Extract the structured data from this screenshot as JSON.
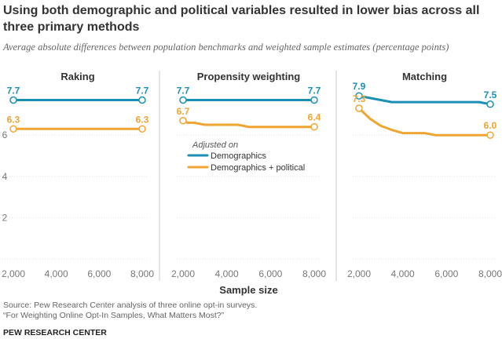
{
  "title": "Using both demographic  and political variables resulted in lower bias across all three primary methods",
  "subtitle": "Average absolute differences between population benchmarks and weighted sample estimates (percentage points)",
  "source_line1": "Source: Pew Research Center analysis of three online opt-in surveys.",
  "source_line2": "“For Weighting Online Opt-In Samples, What Matters Most?”",
  "brand": "PEW RESEARCH CENTER",
  "colors": {
    "demographics": "#1c8fb5",
    "political": "#f0a431",
    "grid": "#e2e2e2",
    "divider": "#cccccc",
    "text": "#333333",
    "tick": "#777777"
  },
  "chart_data": {
    "type": "line",
    "xlabel": "Sample size",
    "ylabel": "",
    "xlim": [
      2000,
      8000
    ],
    "ylim": [
      0,
      8
    ],
    "x_ticks": [
      2000,
      4000,
      6000,
      8000
    ],
    "x_tick_labels": [
      "2,000",
      "4,000",
      "6,000",
      "8,000"
    ],
    "y_ticks": [
      2,
      4,
      6
    ],
    "y_tick_labels": [
      "2",
      "4",
      "6"
    ],
    "grid": true,
    "legend": {
      "title": "Adjusted on",
      "placement": "center (inside middle panel)",
      "entries": [
        "Demographics",
        "Demographics + political"
      ]
    },
    "panels": [
      {
        "title": "Raking",
        "series": [
          {
            "name": "Demographics",
            "x": [
              2000,
              3000,
              4000,
              5000,
              6000,
              7000,
              8000
            ],
            "y": [
              7.7,
              7.7,
              7.7,
              7.7,
              7.7,
              7.7,
              7.7
            ],
            "start_label": "7.7",
            "end_label": "7.7"
          },
          {
            "name": "Demographics + political",
            "x": [
              2000,
              3000,
              4000,
              5000,
              6000,
              7000,
              8000
            ],
            "y": [
              6.3,
              6.3,
              6.3,
              6.3,
              6.3,
              6.3,
              6.3
            ],
            "start_label": "6.3",
            "end_label": "6.3"
          }
        ]
      },
      {
        "title": "Propensity weighting",
        "series": [
          {
            "name": "Demographics",
            "x": [
              2000,
              3000,
              4000,
              5000,
              6000,
              7000,
              8000
            ],
            "y": [
              7.7,
              7.7,
              7.7,
              7.7,
              7.7,
              7.7,
              7.7
            ],
            "start_label": "7.7",
            "end_label": "7.7"
          },
          {
            "name": "Demographics + political",
            "x": [
              2000,
              2200,
              2500,
              3000,
              3500,
              4000,
              4500,
              5000,
              5500,
              6000,
              7000,
              8000
            ],
            "y": [
              6.7,
              6.6,
              6.6,
              6.5,
              6.5,
              6.5,
              6.5,
              6.4,
              6.4,
              6.4,
              6.4,
              6.4
            ],
            "start_label": "6.7",
            "end_label": "6.4"
          }
        ]
      },
      {
        "title": "Matching",
        "series": [
          {
            "name": "Demographics",
            "x": [
              2000,
              2500,
              3000,
              3500,
              4000,
              5000,
              6000,
              7000,
              7500,
              8000
            ],
            "y": [
              7.9,
              7.8,
              7.7,
              7.6,
              7.6,
              7.6,
              7.6,
              7.6,
              7.6,
              7.5
            ],
            "start_label": "7.9",
            "end_label": "7.5"
          },
          {
            "name": "Demographics + political",
            "x": [
              2000,
              2500,
              3000,
              3500,
              4000,
              4500,
              5000,
              5500,
              6000,
              7000,
              8000
            ],
            "y": [
              7.3,
              6.8,
              6.45,
              6.25,
              6.1,
              6.1,
              6.1,
              6.0,
              6.0,
              6.0,
              6.0
            ],
            "start_label": "7.3",
            "end_label": "6.0"
          }
        ]
      }
    ]
  }
}
